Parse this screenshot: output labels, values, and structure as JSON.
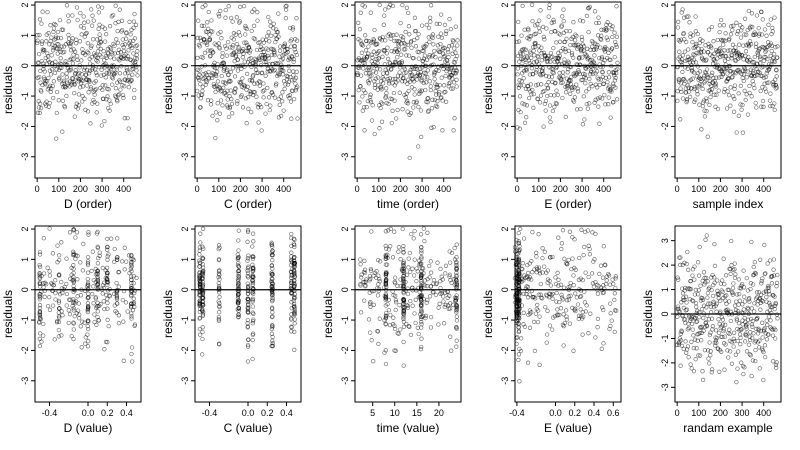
{
  "figure": {
    "chart_data": [
      {
        "type": "scatter",
        "xlabel": "D (order)",
        "ylabel": "residuals",
        "xlim": [
          -10,
          480
        ],
        "ylim": [
          -3.7,
          2.1
        ],
        "xticks": [
          0,
          100,
          200,
          300,
          400
        ],
        "xticklabels": [
          "0",
          "100",
          "200",
          "300",
          "400"
        ],
        "yticks": [
          -3,
          -2,
          -1,
          0,
          1,
          2
        ],
        "yticklabels": [
          "-3",
          "-2",
          "-1",
          "0",
          "1",
          "2"
        ],
        "hline": 0,
        "x_kind": "index",
        "groups": [],
        "n_points": 465
      },
      {
        "type": "scatter",
        "xlabel": "C (order)",
        "ylabel": "residuals",
        "xlim": [
          -10,
          480
        ],
        "ylim": [
          -3.7,
          2.1
        ],
        "xticks": [
          0,
          100,
          200,
          300,
          400
        ],
        "xticklabels": [
          "0",
          "100",
          "200",
          "300",
          "400"
        ],
        "yticks": [
          -3,
          -2,
          -1,
          0,
          1,
          2
        ],
        "yticklabels": [
          "-3",
          "-2",
          "-1",
          "0",
          "1",
          "2"
        ],
        "hline": 0,
        "x_kind": "index",
        "groups": [],
        "n_points": 465
      },
      {
        "type": "scatter",
        "xlabel": "time (order)",
        "ylabel": "residuals",
        "xlim": [
          -10,
          480
        ],
        "ylim": [
          -3.7,
          2.1
        ],
        "xticks": [
          0,
          100,
          200,
          300,
          400
        ],
        "xticklabels": [
          "0",
          "100",
          "200",
          "300",
          "400"
        ],
        "yticks": [
          -3,
          -2,
          -1,
          0,
          1,
          2
        ],
        "yticklabels": [
          "-3",
          "-2",
          "-1",
          "0",
          "1",
          "2"
        ],
        "hline": 0,
        "x_kind": "index",
        "groups": [],
        "n_points": 465
      },
      {
        "type": "scatter",
        "xlabel": "E (order)",
        "ylabel": "residuals",
        "xlim": [
          -10,
          480
        ],
        "ylim": [
          -3.7,
          2.1
        ],
        "xticks": [
          0,
          100,
          200,
          300,
          400
        ],
        "xticklabels": [
          "0",
          "100",
          "200",
          "300",
          "400"
        ],
        "yticks": [
          -3,
          -2,
          -1,
          0,
          1,
          2
        ],
        "yticklabels": [
          "-3",
          "-2",
          "-1",
          "0",
          "1",
          "2"
        ],
        "hline": 0,
        "x_kind": "index",
        "groups": [],
        "n_points": 465
      },
      {
        "type": "scatter",
        "xlabel": "sample index",
        "ylabel": "residuals",
        "xlim": [
          -10,
          480
        ],
        "ylim": [
          -3.7,
          2.1
        ],
        "xticks": [
          0,
          100,
          200,
          300,
          400
        ],
        "xticklabels": [
          "0",
          "100",
          "200",
          "300",
          "400"
        ],
        "yticks": [
          -3,
          -2,
          -1,
          0,
          1,
          2
        ],
        "yticklabels": [
          "-3",
          "-2",
          "-1",
          "0",
          "1",
          "2"
        ],
        "hline": 0,
        "x_kind": "index",
        "groups": [],
        "n_points": 465
      },
      {
        "type": "scatter",
        "xlabel": "D (value)",
        "ylabel": "residuals",
        "xlim": [
          -0.55,
          0.55
        ],
        "ylim": [
          -3.7,
          2.1
        ],
        "xticks": [
          -0.4,
          0.0,
          0.2,
          0.4
        ],
        "xticklabels": [
          "-0.4",
          "0.0",
          "0.2",
          "0.4"
        ],
        "yticks": [
          -3,
          -2,
          -1,
          0,
          1,
          2
        ],
        "yticklabels": [
          "-3",
          "-2",
          "-1",
          "0",
          "1",
          "2"
        ],
        "hline": 0,
        "x_kind": "continuous",
        "groups": [
          -0.5,
          -0.3,
          -0.15,
          0.0,
          0.1,
          0.2,
          0.3,
          0.45
        ],
        "n_points": 380
      },
      {
        "type": "scatter",
        "xlabel": "C (value)",
        "ylabel": "residuals",
        "xlim": [
          -0.55,
          0.55
        ],
        "ylim": [
          -3.7,
          2.1
        ],
        "xticks": [
          -0.4,
          0.0,
          0.2,
          0.4
        ],
        "xticklabels": [
          "-0.4",
          "0.0",
          "0.2",
          "0.4"
        ],
        "yticks": [
          -3,
          -2,
          -1,
          0,
          1,
          2
        ],
        "yticklabels": [
          "-3",
          "-2",
          "-1",
          "0",
          "1",
          "2"
        ],
        "hline": 0,
        "x_kind": "grouped",
        "groups": [
          -0.5,
          -0.47,
          -0.3,
          -0.1,
          0.0,
          0.05,
          0.25,
          0.45,
          0.48
        ],
        "n_points": 420
      },
      {
        "type": "scatter",
        "xlabel": "time (value)",
        "ylabel": "residuals",
        "xlim": [
          1,
          25
        ],
        "ylim": [
          -3.7,
          2.1
        ],
        "xticks": [
          5,
          10,
          15,
          20
        ],
        "xticklabels": [
          "5",
          "10",
          "15",
          "20"
        ],
        "yticks": [
          -3,
          -2,
          -1,
          0,
          1,
          2
        ],
        "yticklabels": [
          "-3",
          "-2",
          "-1",
          "0",
          "1",
          "2"
        ],
        "hline": 0,
        "x_kind": "continuous",
        "groups": [
          8,
          12,
          16,
          24
        ],
        "n_points": 420
      },
      {
        "type": "scatter",
        "xlabel": "E (value)",
        "ylabel": "residuals",
        "xlim": [
          -0.42,
          0.68
        ],
        "ylim": [
          -3.7,
          2.1
        ],
        "xticks": [
          -0.4,
          0.0,
          0.2,
          0.4,
          0.6
        ],
        "xticklabels": [
          "-0.4",
          "0.0",
          "0.2",
          "0.4",
          "0.6"
        ],
        "yticks": [
          -3,
          -2,
          -1,
          0,
          1,
          2
        ],
        "yticklabels": [
          "-3",
          "-2",
          "-1",
          "0",
          "1",
          "2"
        ],
        "hline": 0,
        "x_kind": "skewed",
        "groups": [
          -0.4,
          -0.38
        ],
        "n_points": 420
      },
      {
        "type": "scatter",
        "xlabel": "randam example",
        "ylabel": "residuals",
        "xlim": [
          -10,
          480
        ],
        "ylim": [
          -3.6,
          3.6
        ],
        "xticks": [
          0,
          100,
          200,
          300,
          400
        ],
        "xticklabels": [
          "0",
          "100",
          "200",
          "300",
          "400"
        ],
        "yticks": [
          -3,
          -2,
          -1,
          0,
          1,
          2,
          3
        ],
        "yticklabels": [
          "-3",
          "-2",
          "-1",
          "0",
          "1",
          "2",
          "3"
        ],
        "hline": 0,
        "x_kind": "index",
        "groups": [],
        "n_points": 465
      }
    ]
  }
}
